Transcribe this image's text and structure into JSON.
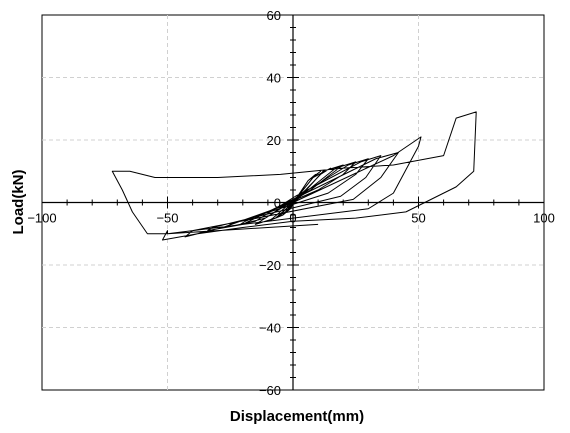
{
  "chart_data": {
    "type": "line",
    "title": "",
    "xlabel": "Displacement(mm)",
    "ylabel": "Load(kN)",
    "xlim": [
      -100,
      100
    ],
    "ylim": [
      -60,
      60
    ],
    "xticks": [
      -100,
      -50,
      0,
      50,
      100
    ],
    "yticks": [
      60,
      40,
      20,
      0,
      -20,
      -40,
      -60
    ],
    "grid": true,
    "grid_style": "dashed",
    "axes_at_origin": true,
    "line_color": "#000000",
    "series": [
      {
        "x": [
          0,
          3,
          5,
          7,
          3,
          0,
          -2,
          -3,
          -1,
          0,
          5,
          9,
          6,
          2,
          -3,
          -4,
          -1,
          1,
          6,
          11,
          8,
          3,
          -5,
          -7,
          -3,
          2,
          8,
          15,
          11,
          5,
          -8,
          -10,
          -4,
          3,
          12,
          20,
          15,
          7,
          -13,
          -15,
          -7,
          3,
          17,
          25,
          20,
          10,
          -19,
          -21,
          -11,
          2,
          22,
          30,
          25,
          14,
          -25,
          -27,
          -15,
          1,
          27,
          35,
          29,
          19,
          -32,
          -34,
          -20,
          0,
          33,
          42,
          35,
          24,
          -40,
          -43,
          -28,
          0,
          40,
          51,
          50,
          40,
          30,
          -50,
          -50,
          -52,
          -38,
          -20,
          0,
          25,
          45,
          55,
          65,
          72,
          73,
          65,
          60,
          40,
          20,
          -5,
          -30,
          -55,
          -65,
          -72,
          -68,
          -64,
          -58,
          -50,
          -30,
          -10,
          10
        ],
        "y": [
          0,
          3,
          5,
          7,
          3,
          -0.5,
          -2,
          -3,
          -1.5,
          0,
          5,
          9,
          7,
          2,
          -3,
          -4,
          -2,
          1,
          7,
          10,
          8,
          3,
          -4,
          -5,
          -3,
          2,
          8,
          11,
          9,
          4,
          -5,
          -6,
          -4,
          2,
          10,
          12,
          9,
          4,
          -6,
          -7,
          -5,
          2,
          11,
          13,
          9,
          4,
          -6,
          -7,
          -5,
          2,
          12,
          14,
          9,
          3,
          -7,
          -8,
          -6,
          2,
          13,
          15,
          8,
          2,
          -8,
          -9,
          -7,
          1,
          14,
          16,
          8,
          1,
          -9,
          -11,
          -8,
          0,
          15,
          21,
          18,
          3,
          -2,
          -10,
          -9,
          -12,
          -10,
          -8,
          -6,
          -5,
          -3,
          1,
          5,
          10,
          29,
          27,
          15,
          12,
          11,
          9,
          8,
          8,
          10,
          10,
          4,
          -3,
          -10,
          -10,
          -9,
          -8,
          -7
        ]
      }
    ]
  }
}
